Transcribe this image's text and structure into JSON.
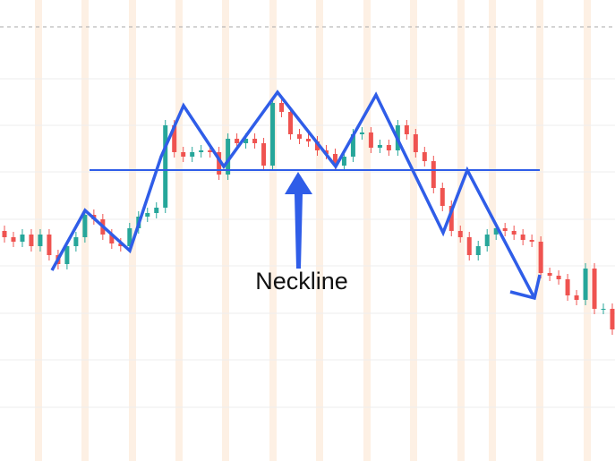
{
  "chart_data": {
    "type": "candlestick",
    "annotation": "Neckline",
    "ylim": [
      0,
      515
    ],
    "up_color": "#26a69a",
    "down_color": "#ef5350",
    "open": [
      257,
      250,
      245,
      253,
      240,
      253,
      230,
      220,
      240,
      250,
      275,
      270,
      253,
      243,
      240,
      260,
      273,
      277,
      283,
      375,
      345,
      340,
      345,
      347,
      345,
      320,
      360,
      355,
      360,
      355,
      330,
      400,
      390,
      365,
      360,
      357,
      347,
      343,
      330,
      340,
      365,
      367,
      350,
      353,
      347,
      375,
      365,
      345,
      335,
      305,
      285,
      257,
      250,
      230,
      240,
      253,
      260,
      257,
      253,
      247,
      245,
      210,
      207,
      203,
      185,
      180,
      215,
      170,
      170
    ],
    "high": [
      263,
      256,
      259,
      259,
      259,
      259,
      236,
      246,
      256,
      281,
      281,
      276,
      259,
      249,
      266,
      279,
      283,
      289,
      381,
      381,
      351,
      351,
      353,
      353,
      351,
      366,
      366,
      366,
      366,
      361,
      406,
      406,
      396,
      371,
      366,
      363,
      353,
      349,
      346,
      371,
      373,
      373,
      359,
      359,
      381,
      381,
      371,
      351,
      341,
      311,
      291,
      263,
      256,
      246,
      259,
      266,
      266,
      263,
      259,
      253,
      251,
      216,
      213,
      209,
      191,
      221,
      221,
      176,
      176
    ],
    "low": [
      244,
      239,
      239,
      234,
      234,
      224,
      214,
      214,
      234,
      244,
      264,
      247,
      237,
      234,
      234,
      254,
      267,
      271,
      277,
      339,
      334,
      334,
      339,
      339,
      314,
      314,
      349,
      349,
      349,
      324,
      324,
      384,
      359,
      354,
      351,
      341,
      337,
      324,
      324,
      334,
      359,
      344,
      344,
      341,
      341,
      359,
      339,
      329,
      299,
      279,
      251,
      244,
      224,
      224,
      234,
      247,
      251,
      247,
      241,
      239,
      204,
      201,
      197,
      179,
      174,
      174,
      164,
      164,
      141
    ],
    "close": [
      250,
      245,
      253,
      240,
      253,
      230,
      220,
      240,
      250,
      275,
      270,
      253,
      243,
      240,
      260,
      273,
      277,
      283,
      375,
      345,
      340,
      345,
      347,
      345,
      320,
      360,
      355,
      360,
      355,
      330,
      400,
      390,
      365,
      360,
      357,
      347,
      343,
      330,
      340,
      365,
      367,
      350,
      353,
      347,
      375,
      365,
      345,
      335,
      305,
      285,
      257,
      250,
      230,
      240,
      253,
      260,
      257,
      253,
      247,
      245,
      210,
      207,
      203,
      185,
      180,
      215,
      170,
      170,
      147
    ]
  }
}
